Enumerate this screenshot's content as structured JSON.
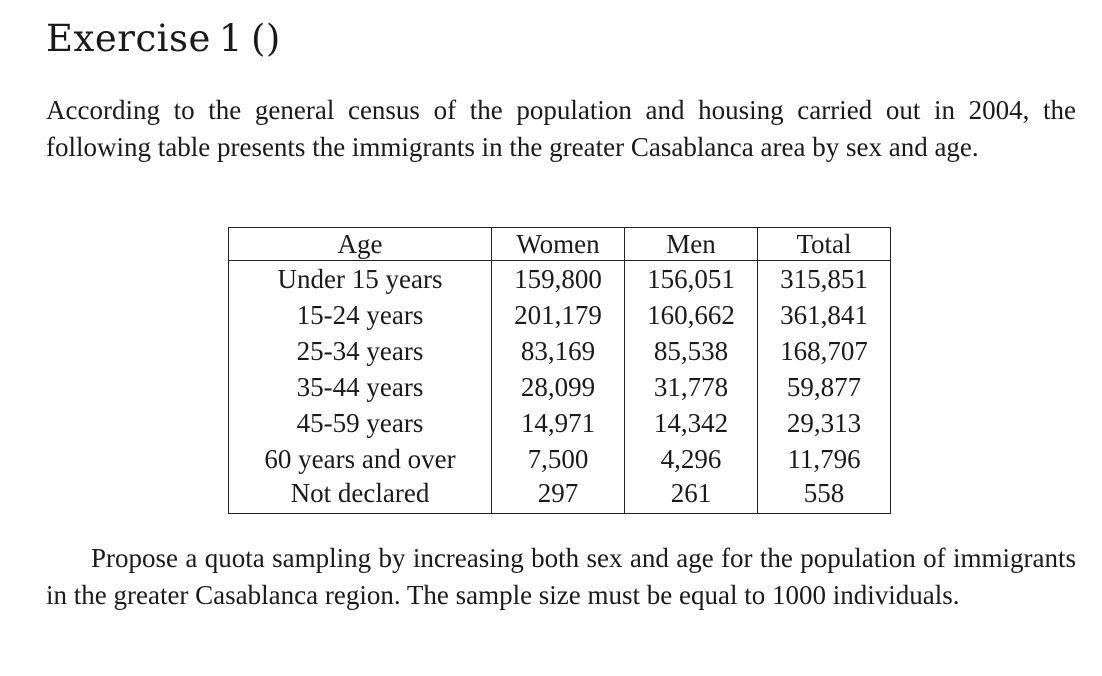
{
  "exercise": {
    "title_word": "Exercise",
    "title_number": "1",
    "title_parens": "()"
  },
  "intro_text": "According to the general census of the population and housing carried out in 2004, the following table presents the immigrants in the greater Casablanca area by sex and age.",
  "table": {
    "headers": [
      "Age",
      "Women",
      "Men",
      "Total"
    ],
    "rows": [
      [
        "Under 15 years",
        "159,800",
        "156,051",
        "315,851"
      ],
      [
        "15-24 years",
        "201,179",
        "160,662",
        "361,841"
      ],
      [
        "25-34 years",
        "83,169",
        "85,538",
        "168,707"
      ],
      [
        "35-44 years",
        "28,099",
        "31,778",
        "59,877"
      ],
      [
        "45-59 years",
        "14,971",
        "14,342",
        "29,313"
      ],
      [
        "60 years and over",
        "7,500",
        "4,296",
        "11,796"
      ],
      [
        "Not declared",
        "297",
        "261",
        "558"
      ]
    ]
  },
  "question_text": "Propose a quota sampling by increasing both sex and age for the population of immigrants in the greater Casablanca region. The sample size must be equal to 1000 individuals."
}
